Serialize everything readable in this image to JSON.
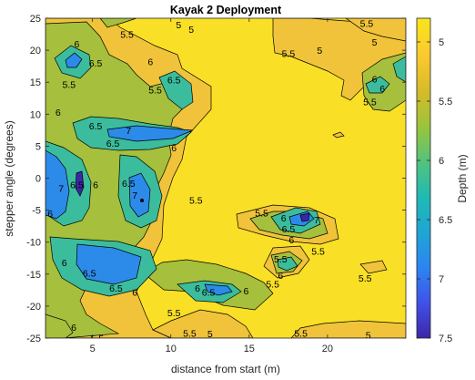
{
  "chart_data": {
    "type": "contour",
    "title": "Kayak 2 Deployment",
    "xlabel": "distance from start (m)",
    "ylabel": "stepper angle (degrees)",
    "xlim": [
      2,
      25
    ],
    "ylim": [
      -25,
      25
    ],
    "xticks": [
      5,
      10,
      15,
      20
    ],
    "yticks": [
      -25,
      -20,
      -15,
      -10,
      -5,
      0,
      5,
      10,
      15,
      20,
      25
    ],
    "colorbar": {
      "label": "Depth (m)",
      "range": [
        4.8,
        7.5
      ],
      "ticks": [
        5,
        5.5,
        6,
        6.5,
        7,
        7.5
      ],
      "colormap": "parula",
      "colors": [
        "#3e26a8",
        "#4151e8",
        "#2c85f3",
        "#1fa5d5",
        "#1fbab3",
        "#52c37e",
        "#9ac43c",
        "#d6bb29",
        "#fbc830",
        "#f9e51a"
      ]
    },
    "contour_levels": [
      5,
      5.5,
      6,
      6.5,
      7,
      7.5
    ],
    "contour_labels": [
      {
        "x": 10.5,
        "y": 24,
        "text": "5"
      },
      {
        "x": 14,
        "y": 25.5,
        "text": "5"
      },
      {
        "x": 22.5,
        "y": 24.2,
        "text": "5.5"
      },
      {
        "x": 23,
        "y": 21.3,
        "text": "5"
      },
      {
        "x": 4,
        "y": 21,
        "text": "6"
      },
      {
        "x": 5.2,
        "y": 18,
        "text": "6.5"
      },
      {
        "x": 7.2,
        "y": 22.5,
        "text": "5.5"
      },
      {
        "x": 3.5,
        "y": 14.7,
        "text": "5.5"
      },
      {
        "x": 8.7,
        "y": 18.2,
        "text": "6"
      },
      {
        "x": 9,
        "y": 13.8,
        "text": "5.5"
      },
      {
        "x": 10.2,
        "y": 15.4,
        "text": "6.5"
      },
      {
        "x": 11.3,
        "y": 23.3,
        "text": "5"
      },
      {
        "x": 17.5,
        "y": 19.5,
        "text": "5.5"
      },
      {
        "x": 19.5,
        "y": 20,
        "text": "5"
      },
      {
        "x": 2.8,
        "y": 10.3,
        "text": "6"
      },
      {
        "x": 5.2,
        "y": 8.2,
        "text": "6.5"
      },
      {
        "x": 7.3,
        "y": 7.5,
        "text": "7"
      },
      {
        "x": 6.3,
        "y": 5.5,
        "text": "6.5"
      },
      {
        "x": 10.2,
        "y": 4.8,
        "text": "6"
      },
      {
        "x": 23,
        "y": 15.5,
        "text": "6"
      },
      {
        "x": 23.5,
        "y": 14,
        "text": "6"
      },
      {
        "x": 22.7,
        "y": 12,
        "text": "5.5"
      },
      {
        "x": 4,
        "y": -1,
        "text": "6.5"
      },
      {
        "x": 3,
        "y": -1.6,
        "text": "7"
      },
      {
        "x": 5.2,
        "y": -1,
        "text": "6"
      },
      {
        "x": 7.3,
        "y": -0.8,
        "text": "6.5"
      },
      {
        "x": 7.7,
        "y": -2.6,
        "text": "7"
      },
      {
        "x": 11.6,
        "y": -3.4,
        "text": "5.5"
      },
      {
        "x": 2.3,
        "y": -5.5,
        "text": "6"
      },
      {
        "x": 15.8,
        "y": -5.4,
        "text": "5.5"
      },
      {
        "x": 17.2,
        "y": -6.2,
        "text": "6"
      },
      {
        "x": 17.5,
        "y": -7.9,
        "text": "6.5"
      },
      {
        "x": 19.3,
        "y": -6.5,
        "text": "7"
      },
      {
        "x": 17.7,
        "y": -9.6,
        "text": "6"
      },
      {
        "x": 19.4,
        "y": -11.4,
        "text": "5.5"
      },
      {
        "x": 3.2,
        "y": -13.2,
        "text": "6"
      },
      {
        "x": 4.8,
        "y": -14.8,
        "text": "6.5"
      },
      {
        "x": 6.5,
        "y": -17.2,
        "text": "6.5"
      },
      {
        "x": 7.7,
        "y": -17.8,
        "text": "6"
      },
      {
        "x": 10.2,
        "y": -21,
        "text": "5.5"
      },
      {
        "x": 11.7,
        "y": -17.2,
        "text": "6"
      },
      {
        "x": 12.4,
        "y": -17.8,
        "text": "6.5"
      },
      {
        "x": 14.8,
        "y": -17.6,
        "text": "6"
      },
      {
        "x": 17,
        "y": -12.6,
        "text": "5.5"
      },
      {
        "x": 17,
        "y": -15.2,
        "text": "6"
      },
      {
        "x": 16.5,
        "y": -16.5,
        "text": "5.5"
      },
      {
        "x": 22.4,
        "y": -15.6,
        "text": "5.5"
      },
      {
        "x": 3.8,
        "y": -23.3,
        "text": "6"
      },
      {
        "x": 5.3,
        "y": -25,
        "text": "5.5"
      },
      {
        "x": 11.2,
        "y": -24.2,
        "text": "5.5"
      },
      {
        "x": 12.5,
        "y": -24.3,
        "text": "5"
      },
      {
        "x": 18.3,
        "y": -24.2,
        "text": "5.5"
      },
      {
        "x": 22.6,
        "y": -24.5,
        "text": "5"
      }
    ]
  }
}
